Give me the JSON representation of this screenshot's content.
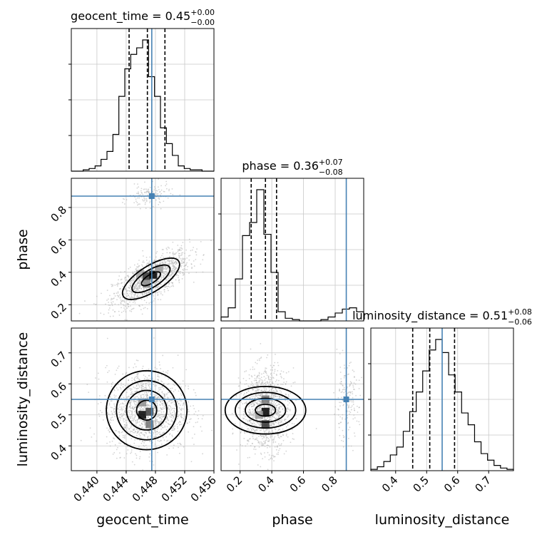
{
  "chart_data": {
    "type": "corner",
    "parameters": [
      "geocent_time",
      "phase",
      "luminosity_distance"
    ],
    "colors": {
      "truth": "#4682b4",
      "hist": "#000000",
      "grid": "#c8c8c8",
      "scatter": "#b0b0b0"
    },
    "grid": true,
    "panels": {
      "geocent_time": {
        "title_prefix": "geocent_time = 0.45",
        "title_sup": "+0.00",
        "title_sub": "−0.00",
        "xlim": [
          0.4365,
          0.456
        ],
        "ticks": [
          0.44,
          0.444,
          0.448,
          0.452,
          0.456
        ],
        "tick_labels": [
          "0.440",
          "0.444",
          "0.448",
          "0.452",
          "0.456"
        ],
        "axis_label": "geocent_time",
        "quantiles": [
          0.4444,
          0.4469,
          0.4493
        ],
        "truth": 0.4475,
        "hist": [
          0,
          0,
          0.01,
          0.02,
          0.04,
          0.09,
          0.15,
          0.28,
          0.57,
          0.78,
          0.89,
          0.94,
          1.0,
          0.72,
          0.57,
          0.33,
          0.21,
          0.12,
          0.04,
          0.02,
          0.01,
          0.01,
          0,
          0
        ]
      },
      "phase": {
        "title_prefix": "phase = 0.36",
        "title_sup": "+0.07",
        "title_sub": "−0.08",
        "xlim": [
          0.08,
          0.98
        ],
        "ticks": [
          0.2,
          0.4,
          0.6,
          0.8
        ],
        "tick_labels": [
          "0.2",
          "0.4",
          "0.6",
          "0.8"
        ],
        "axis_label": "phase",
        "quantiles": [
          0.27,
          0.36,
          0.43
        ],
        "truth": 0.87,
        "hist": [
          0.03,
          0.1,
          0.32,
          0.65,
          0.75,
          1.0,
          0.66,
          0.37,
          0.07,
          0.02,
          0.01,
          0,
          0,
          0,
          0.01,
          0.03,
          0.06,
          0.09,
          0.1,
          0.07
        ]
      },
      "luminosity_distance": {
        "title_prefix": "luminosity_distance = 0.51",
        "title_sup": "+0.08",
        "title_sub": "−0.06",
        "xlim": [
          0.32,
          0.78
        ],
        "ticks": [
          0.4,
          0.5,
          0.6,
          0.7
        ],
        "tick_labels": [
          "0.4",
          "0.5",
          "0.6",
          "0.7"
        ],
        "axis_label": "luminosity_distance",
        "quantiles": [
          0.455,
          0.51,
          0.59
        ],
        "truth": 0.55,
        "hist": [
          0.01,
          0.03,
          0.07,
          0.12,
          0.18,
          0.3,
          0.45,
          0.6,
          0.76,
          0.92,
          1.0,
          0.9,
          0.73,
          0.6,
          0.44,
          0.35,
          0.22,
          0.13,
          0.08,
          0.04,
          0.02,
          0.01
        ]
      }
    },
    "pairs": [
      {
        "x": "geocent_time",
        "y": "phase",
        "ylim": [
          0.1,
          0.98
        ],
        "yticks": [
          0.2,
          0.4,
          0.6,
          0.8
        ],
        "ytick_labels": [
          "0.2",
          "0.4",
          "0.6",
          "0.8"
        ],
        "truth": [
          0.4475,
          0.87
        ],
        "modes": [
          {
            "cx": 0.4474,
            "cy": 0.36,
            "sx": 0.0026,
            "sy": 0.085,
            "rho": 0.7,
            "weight": 0.9
          },
          {
            "cx": 0.4472,
            "cy": 0.87,
            "sx": 0.0014,
            "sy": 0.035,
            "rho": 0.2,
            "weight": 0.1
          }
        ],
        "contour_scales": [
          0.5,
          1.0,
          1.5
        ],
        "density_cells": [
          {
            "x": 0.4459,
            "y": 0.39,
            "level": 0.35
          },
          {
            "x": 0.4468,
            "y": 0.375,
            "level": 0.8
          },
          {
            "x": 0.4477,
            "y": 0.385,
            "level": 1.0
          },
          {
            "x": 0.4468,
            "y": 0.33,
            "level": 0.45
          },
          {
            "x": 0.4485,
            "y": 0.42,
            "level": 0.4
          }
        ]
      },
      {
        "x": "geocent_time",
        "y": "luminosity_distance",
        "ylim": [
          0.32,
          0.78
        ],
        "yticks": [
          0.4,
          0.5,
          0.6,
          0.7
        ],
        "ytick_labels": [
          "0.4",
          "0.5",
          "0.6",
          "0.7"
        ],
        "truth": [
          0.4475,
          0.55
        ],
        "modes": [
          {
            "cx": 0.4468,
            "cy": 0.515,
            "sx": 0.0027,
            "sy": 0.065,
            "rho": 0.0,
            "weight": 1.0
          }
        ],
        "contour_scales": [
          0.5,
          1.0,
          1.5,
          2.0
        ],
        "density_cells": [
          {
            "x": 0.4462,
            "y": 0.5,
            "level": 1.0
          },
          {
            "x": 0.4472,
            "y": 0.51,
            "level": 0.75
          },
          {
            "x": 0.4472,
            "y": 0.47,
            "level": 0.55
          },
          {
            "x": 0.4462,
            "y": 0.54,
            "level": 0.45
          }
        ]
      },
      {
        "x": "phase",
        "y": "luminosity_distance",
        "ylim": [
          0.32,
          0.78
        ],
        "yticks": [
          0.4,
          0.5,
          0.6,
          0.7
        ],
        "ytick_labels": [
          "0.4",
          "0.5",
          "0.6",
          "0.7"
        ],
        "truth": [
          0.87,
          0.55
        ],
        "modes": [
          {
            "cx": 0.36,
            "cy": 0.515,
            "sx": 0.075,
            "sy": 0.065,
            "rho": 0.0,
            "weight": 0.88
          },
          {
            "cx": 0.87,
            "cy": 0.54,
            "sx": 0.04,
            "sy": 0.06,
            "rho": 0.0,
            "weight": 0.12
          }
        ],
        "contour_scales": [
          0.5,
          1.0,
          1.5,
          2.0
        ],
        "density_cells": [
          {
            "x": 0.36,
            "y": 0.51,
            "level": 1.0
          },
          {
            "x": 0.36,
            "y": 0.47,
            "level": 0.8
          },
          {
            "x": 0.36,
            "y": 0.55,
            "level": 0.55
          },
          {
            "x": 0.32,
            "y": 0.5,
            "level": 0.4
          }
        ]
      }
    ]
  }
}
